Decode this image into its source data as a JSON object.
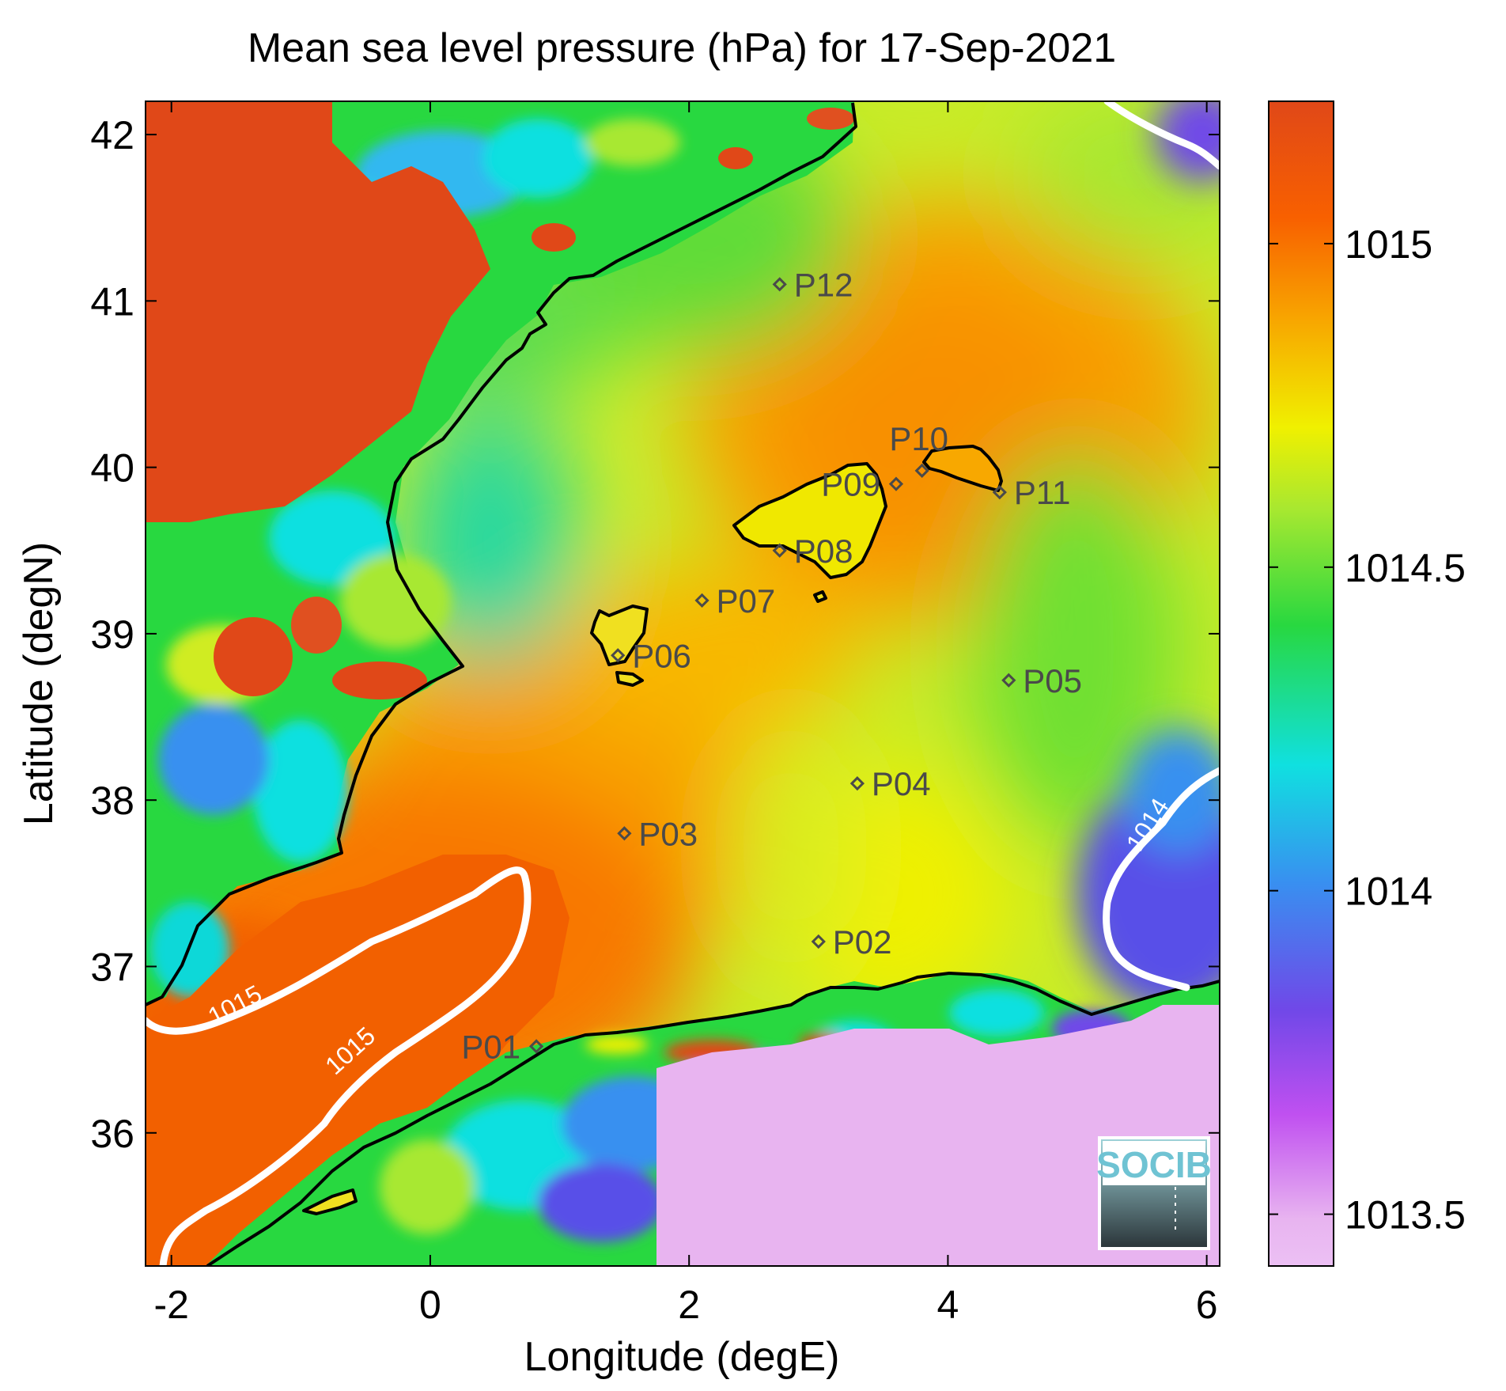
{
  "chart_data": {
    "type": "heatmap",
    "title": "Mean sea level pressure (hPa) for 17-Sep-2021",
    "xlabel": "Longitude (degE)",
    "ylabel": "Latitude (degN)",
    "xlim": [
      -2.2,
      6.1
    ],
    "ylim": [
      35.2,
      42.2
    ],
    "x_ticks": [
      {
        "value": -2,
        "label": "-2"
      },
      {
        "value": 0,
        "label": "0"
      },
      {
        "value": 2,
        "label": "2"
      },
      {
        "value": 4,
        "label": "4"
      },
      {
        "value": 6,
        "label": "6"
      }
    ],
    "y_ticks": [
      {
        "value": 36,
        "label": "36"
      },
      {
        "value": 37,
        "label": "37"
      },
      {
        "value": 38,
        "label": "38"
      },
      {
        "value": 39,
        "label": "39"
      },
      {
        "value": 40,
        "label": "40"
      },
      {
        "value": 41,
        "label": "41"
      },
      {
        "value": 42,
        "label": "42"
      }
    ],
    "colorbar": {
      "range": [
        1013.42,
        1015.22
      ],
      "ticks": [
        {
          "value": 1015,
          "label": "1015"
        },
        {
          "value": 1014.5,
          "label": "1014.5"
        },
        {
          "value": 1014,
          "label": "1014"
        },
        {
          "value": 1013.5,
          "label": "1013.5"
        }
      ],
      "colormap": [
        "#e8b4f0",
        "#c050f0",
        "#7048e8",
        "#3890f0",
        "#10e0e0",
        "#28d840",
        "#a8e830",
        "#f0f000",
        "#f8a000",
        "#f86000",
        "#e04818"
      ]
    },
    "contour_labels": [
      {
        "value": "1015"
      },
      {
        "value": "1015"
      },
      {
        "value": "1014"
      }
    ],
    "stations": [
      {
        "name": "P01",
        "lon": 0.82,
        "lat": 36.52
      },
      {
        "name": "P02",
        "lon": 3.0,
        "lat": 37.15
      },
      {
        "name": "P03",
        "lon": 1.5,
        "lat": 37.8
      },
      {
        "name": "P04",
        "lon": 3.3,
        "lat": 38.1
      },
      {
        "name": "P05",
        "lon": 4.47,
        "lat": 38.72
      },
      {
        "name": "P06",
        "lon": 1.45,
        "lat": 38.87
      },
      {
        "name": "P07",
        "lon": 2.1,
        "lat": 39.2
      },
      {
        "name": "P08",
        "lon": 2.7,
        "lat": 39.5
      },
      {
        "name": "P09",
        "lon": 3.6,
        "lat": 39.9
      },
      {
        "name": "P10",
        "lon": 3.8,
        "lat": 39.98
      },
      {
        "name": "P11",
        "lon": 4.4,
        "lat": 39.85
      },
      {
        "name": "P12",
        "lon": 2.7,
        "lat": 41.1
      }
    ]
  },
  "logo": {
    "text": "SOCIB"
  },
  "colors": {
    "land_red": "#e04818",
    "sea_orange": "#f86000",
    "sea_yellow": "#f0f000",
    "sea_green": "#28d840",
    "land_cyan": "#10e0e0",
    "land_violet": "#e8b4f0",
    "coast": "#000000",
    "contour": "#ffffff"
  }
}
